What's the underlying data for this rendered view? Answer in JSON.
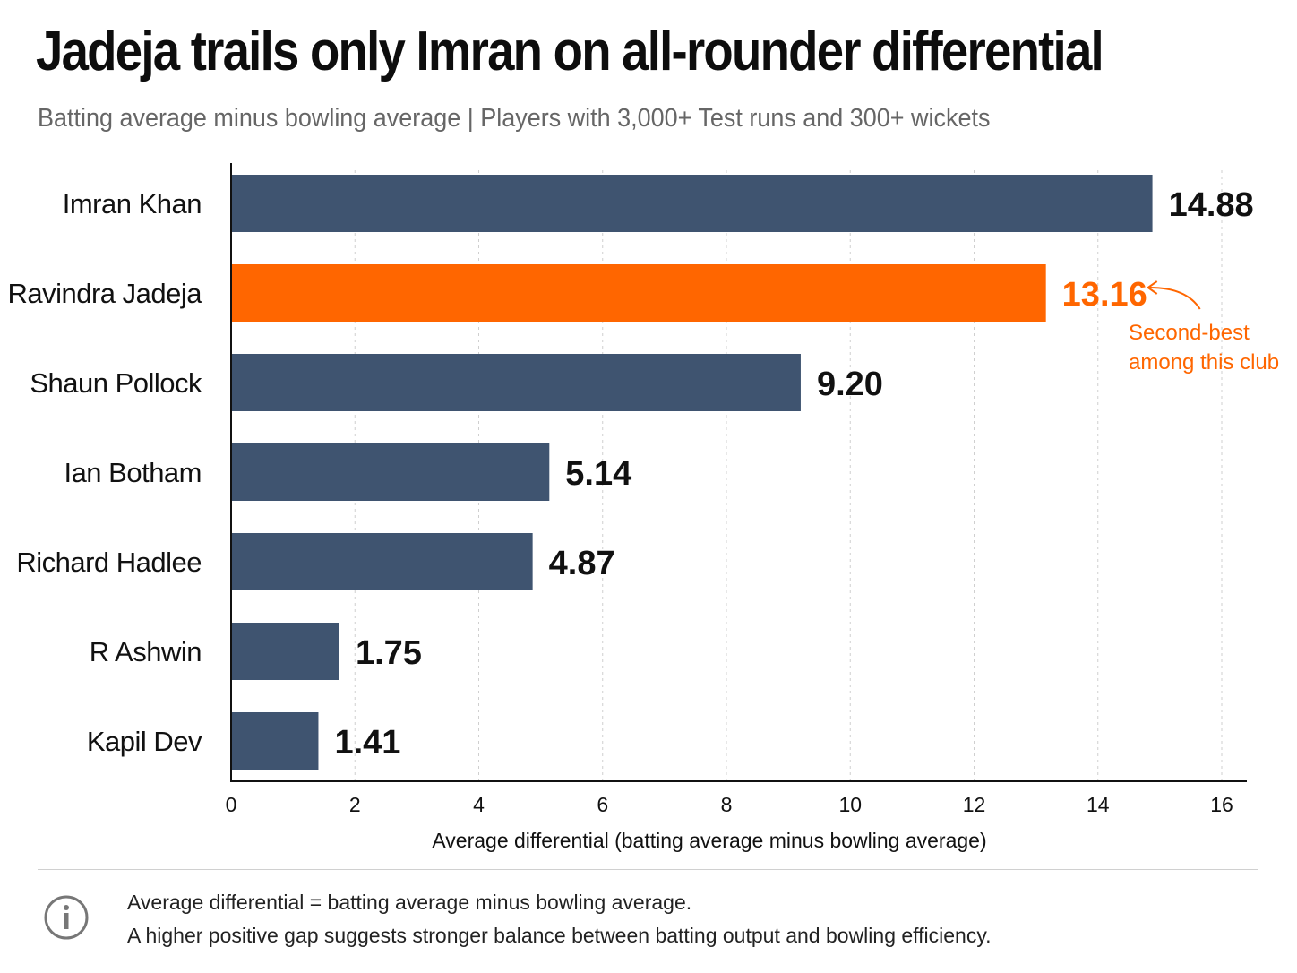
{
  "chart_data": {
    "type": "bar",
    "orientation": "horizontal",
    "title": "Jadeja trails only Imran on all-rounder differential",
    "subtitle": "Batting average minus bowling average | Players with 3,000+ Test runs and 300+ wickets",
    "xlabel": "Average differential (batting average minus bowling average)",
    "xlim": [
      0,
      16
    ],
    "xticks": [
      "0",
      "2",
      "4",
      "6",
      "8",
      "10",
      "12",
      "14",
      "16"
    ],
    "grid": "vertical dotted",
    "categories": [
      "Imran Khan",
      "Ravindra Jadeja",
      "Shaun Pollock",
      "Ian Botham",
      "Richard Hadlee",
      "R Ashwin",
      "Kapil Dev"
    ],
    "values": [
      14.88,
      13.16,
      9.2,
      5.14,
      4.87,
      1.75,
      1.41
    ],
    "value_labels": [
      "14.88",
      "13.16",
      "9.20",
      "5.14",
      "4.87",
      "1.75",
      "1.41"
    ],
    "highlight_index": 1,
    "colors": {
      "default": "#3f5470",
      "highlight": "#ff6600"
    },
    "annotation": {
      "target": "Ravindra Jadeja",
      "lines": [
        "Second-best",
        "among this club"
      ],
      "color": "#ff6600"
    }
  },
  "footnote": {
    "icon": "info-icon",
    "line1": "Average differential = batting average minus bowling average.",
    "line2": "A higher positive gap suggests stronger balance between batting output and bowling efficiency."
  }
}
